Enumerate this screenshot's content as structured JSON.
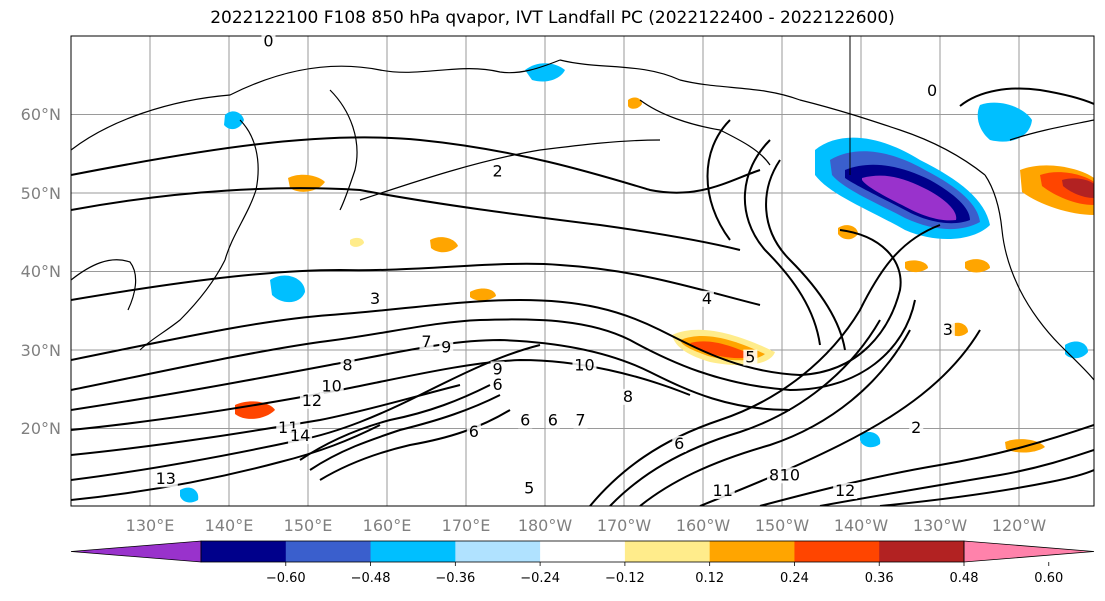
{
  "title": "2022122100 F108 850 hPa qvapor, IVT Landfall PC (2022122400 - 2022122600)",
  "lat_labels": [
    "60°N",
    "50°N",
    "40°N",
    "30°N",
    "20°N"
  ],
  "lon_labels": [
    "130°E",
    "140°E",
    "150°E",
    "160°E",
    "170°E",
    "180°W",
    "170°W",
    "160°W",
    "150°W",
    "140°W",
    "130°W",
    "120°W"
  ],
  "colorbar": {
    "colors": [
      "#9932CC",
      "#00008B",
      "#3A5FCD",
      "#00BFFF",
      "#B0E2FF",
      "#FFFFFF",
      "#FFEC8B",
      "#FFA500",
      "#FF4500",
      "#B22222",
      "#FF82AB"
    ],
    "ticks": [
      "−0.60",
      "−0.48",
      "−0.36",
      "−0.24",
      "−0.12",
      "0.12",
      "0.24",
      "0.36",
      "0.48",
      "0.60"
    ]
  },
  "contour_labels": [
    {
      "text": "0",
      "lon": 145,
      "lat": 68.8
    },
    {
      "text": "0",
      "lon": 229,
      "lat": 62.5
    },
    {
      "text": "2",
      "lon": 174,
      "lat": 52.2
    },
    {
      "text": "3",
      "lon": 158.5,
      "lat": 36
    },
    {
      "text": "4",
      "lon": 200.5,
      "lat": 36
    },
    {
      "text": "7",
      "lon": 165,
      "lat": 30.5
    },
    {
      "text": "9",
      "lon": 167.5,
      "lat": 29.8
    },
    {
      "text": "8",
      "lon": 155,
      "lat": 27.5
    },
    {
      "text": "10",
      "lon": 153,
      "lat": 24.8
    },
    {
      "text": "10",
      "lon": 185,
      "lat": 27.5
    },
    {
      "text": "9",
      "lon": 174,
      "lat": 27
    },
    {
      "text": "6",
      "lon": 174,
      "lat": 25
    },
    {
      "text": "12",
      "lon": 150.5,
      "lat": 23
    },
    {
      "text": "11",
      "lon": 147.5,
      "lat": 19.5
    },
    {
      "text": "14",
      "lon": 149,
      "lat": 18.5
    },
    {
      "text": "6",
      "lon": 171,
      "lat": 19
    },
    {
      "text": "6",
      "lon": 177.5,
      "lat": 20.5
    },
    {
      "text": "6",
      "lon": 181,
      "lat": 20.5
    },
    {
      "text": "7",
      "lon": 184.5,
      "lat": 20.5
    },
    {
      "text": "8",
      "lon": 190.5,
      "lat": 23.5
    },
    {
      "text": "6",
      "lon": 197,
      "lat": 17.5
    },
    {
      "text": "5",
      "lon": 206,
      "lat": 28.5
    },
    {
      "text": "3",
      "lon": 231,
      "lat": 32
    },
    {
      "text": "2",
      "lon": 227,
      "lat": 19.5
    },
    {
      "text": "13",
      "lon": 132,
      "lat": 13
    },
    {
      "text": "5",
      "lon": 178,
      "lat": 11.8
    },
    {
      "text": "11",
      "lon": 202.5,
      "lat": 11.5
    },
    {
      "text": "8",
      "lon": 209,
      "lat": 13.5
    },
    {
      "text": "10",
      "lon": 211,
      "lat": 13.5
    },
    {
      "text": "12",
      "lon": 218,
      "lat": 11.5
    }
  ]
}
